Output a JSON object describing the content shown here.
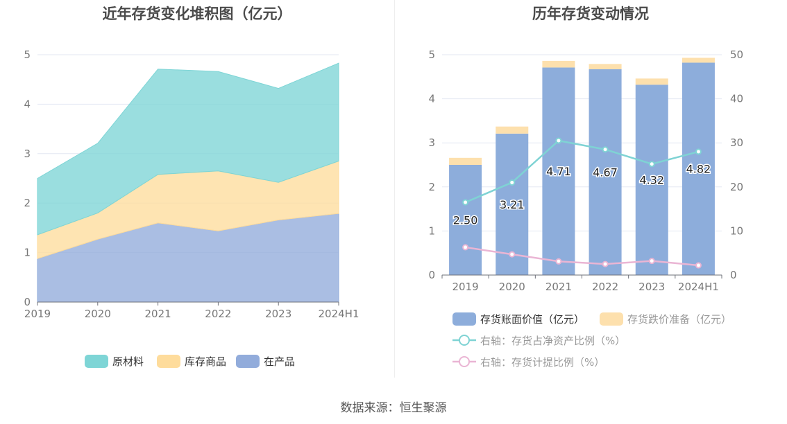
{
  "source_label": "数据来源：恒生聚源",
  "chart_data": [
    {
      "type": "area",
      "stacked": true,
      "title": "近年存货变化堆积图（亿元）",
      "categories": [
        "2019",
        "2020",
        "2021",
        "2022",
        "2023",
        "2024H1"
      ],
      "series": [
        {
          "name": "在产品",
          "values": [
            0.88,
            1.27,
            1.6,
            1.44,
            1.66,
            1.79
          ],
          "color": "#92acdb"
        },
        {
          "name": "库存商品",
          "values": [
            0.48,
            0.53,
            0.98,
            1.21,
            0.76,
            1.06
          ],
          "color": "#fedc9c"
        },
        {
          "name": "原材料",
          "values": [
            1.14,
            1.41,
            2.13,
            2.01,
            1.9,
            1.98
          ],
          "color": "#7ed5d6"
        }
      ],
      "legend_order": [
        "原材料",
        "库存商品",
        "在产品"
      ],
      "y_ticks": [
        "0",
        "1",
        "2",
        "3",
        "4",
        "5"
      ],
      "ylim": [
        0,
        5
      ],
      "grid": true,
      "legend_position": "bottom"
    },
    {
      "type": "bar",
      "title": "历年存货变动情况",
      "categories": [
        "2019",
        "2020",
        "2021",
        "2022",
        "2023",
        "2024H1"
      ],
      "series": [
        {
          "name": "存货账面价值（亿元）",
          "values": [
            2.5,
            3.21,
            4.71,
            4.67,
            4.32,
            4.82
          ],
          "labels": [
            "2.50",
            "3.21",
            "4.71",
            "4.67",
            "4.32",
            "4.82"
          ],
          "color": "#8daddb",
          "stack": "inv"
        },
        {
          "name": "存货跌价准备（亿元）",
          "values": [
            0.16,
            0.16,
            0.15,
            0.12,
            0.14,
            0.11
          ],
          "color": "#fde0ad",
          "stack": "inv"
        },
        {
          "name": "右轴：存货占净资产比例（%）",
          "type": "line",
          "axis": "right",
          "values": [
            16.5,
            21.0,
            30.5,
            28.5,
            25.2,
            28.0
          ],
          "color": "#7fd3d4"
        },
        {
          "name": "右轴：存货计提比例（%）",
          "type": "line",
          "axis": "right",
          "values": [
            6.3,
            4.7,
            3.1,
            2.5,
            3.2,
            2.2
          ],
          "color": "#eab5d4"
        }
      ],
      "y_ticks": [
        "0",
        "1",
        "2",
        "3",
        "4",
        "5"
      ],
      "ylim": [
        0,
        5
      ],
      "y2_ticks": [
        "0",
        "10",
        "20",
        "30",
        "40",
        "50"
      ],
      "y2lim": [
        0,
        50
      ],
      "grid": true,
      "legend_position": "bottom"
    }
  ]
}
